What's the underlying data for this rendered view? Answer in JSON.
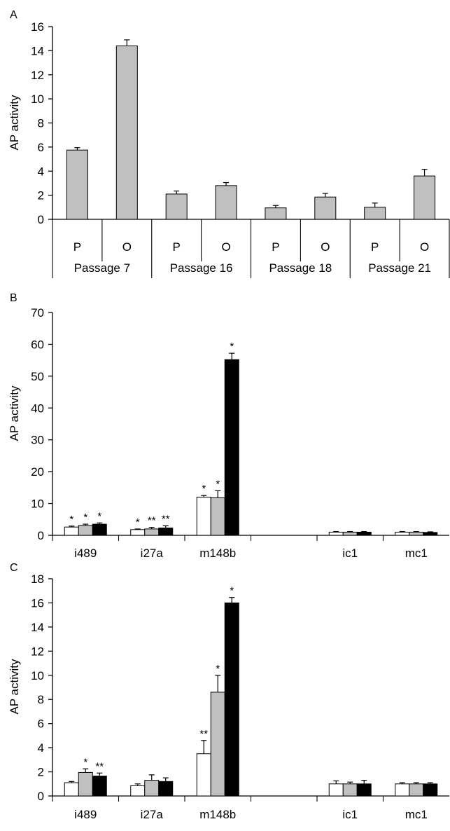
{
  "chart_data": [
    {
      "panel_label": "A",
      "type": "bar",
      "ylabel": "AP activity",
      "ylim": [
        0,
        16
      ],
      "yticks": [
        0,
        2,
        4,
        6,
        8,
        10,
        12,
        14,
        16
      ],
      "categories": [
        "P",
        "O",
        "P",
        "O",
        "P",
        "O",
        "P",
        "O"
      ],
      "groups": [
        {
          "label": "Passage 7",
          "span": 2
        },
        {
          "label": "Passage 16",
          "span": 2
        },
        {
          "label": "Passage 18",
          "span": 2
        },
        {
          "label": "Passage 21",
          "span": 2
        }
      ],
      "series": [
        {
          "values": [
            5.75,
            14.4,
            2.1,
            2.8,
            0.95,
            1.85,
            1.0,
            3.6
          ],
          "errors": [
            0.2,
            0.5,
            0.25,
            0.25,
            0.2,
            0.3,
            0.35,
            0.55
          ],
          "color": "#c0c0c0"
        }
      ],
      "grid": false
    },
    {
      "panel_label": "B",
      "type": "bar",
      "ylabel": "AP activity",
      "ylim": [
        0,
        70
      ],
      "yticks": [
        0,
        10,
        20,
        30,
        40,
        50,
        60,
        70
      ],
      "categories": [
        "i489",
        "i27a",
        "m148b",
        "",
        "ic1",
        "mc1"
      ],
      "series": [
        {
          "color": "#ffffff",
          "values": [
            2.6,
            1.8,
            12.0,
            null,
            1.0,
            1.0
          ],
          "errors": [
            0.3,
            0.2,
            0.5,
            null,
            0.2,
            0.2
          ],
          "marks": [
            "*",
            "*",
            "*",
            "",
            "",
            ""
          ]
        },
        {
          "color": "#c0c0c0",
          "values": [
            3.1,
            2.0,
            11.8,
            null,
            1.0,
            1.0
          ],
          "errors": [
            0.4,
            0.5,
            2.2,
            null,
            0.2,
            0.2
          ],
          "marks": [
            "*",
            "**",
            "*",
            "",
            "",
            ""
          ]
        },
        {
          "color": "#000000",
          "values": [
            3.5,
            2.3,
            55.2,
            null,
            1.0,
            0.9
          ],
          "errors": [
            0.4,
            0.7,
            2.0,
            null,
            0.2,
            0.2
          ],
          "marks": [
            "*",
            "**",
            "*",
            "",
            "",
            ""
          ]
        }
      ],
      "grid": false
    },
    {
      "panel_label": "C",
      "type": "bar",
      "ylabel": "AP activity",
      "ylim": [
        0,
        18
      ],
      "yticks": [
        0,
        2,
        4,
        6,
        8,
        10,
        12,
        14,
        16,
        18
      ],
      "categories": [
        "i489",
        "i27a",
        "m148b",
        "",
        "ic1",
        "mc1"
      ],
      "series": [
        {
          "color": "#ffffff",
          "values": [
            1.1,
            0.85,
            3.5,
            null,
            1.0,
            1.0
          ],
          "errors": [
            0.1,
            0.15,
            1.1,
            null,
            0.25,
            0.1
          ],
          "marks": [
            "",
            "",
            "**",
            "",
            "",
            ""
          ]
        },
        {
          "color": "#c0c0c0",
          "values": [
            1.95,
            1.3,
            8.6,
            null,
            1.0,
            1.0
          ],
          "errors": [
            0.3,
            0.45,
            1.4,
            null,
            0.15,
            0.1
          ],
          "marks": [
            "*",
            "",
            "*",
            "",
            "",
            ""
          ]
        },
        {
          "color": "#000000",
          "values": [
            1.65,
            1.2,
            16.0,
            null,
            1.0,
            1.0
          ],
          "errors": [
            0.25,
            0.3,
            0.45,
            null,
            0.3,
            0.1
          ],
          "marks": [
            "**",
            "",
            "*",
            "",
            "",
            ""
          ]
        }
      ],
      "grid": false
    }
  ]
}
